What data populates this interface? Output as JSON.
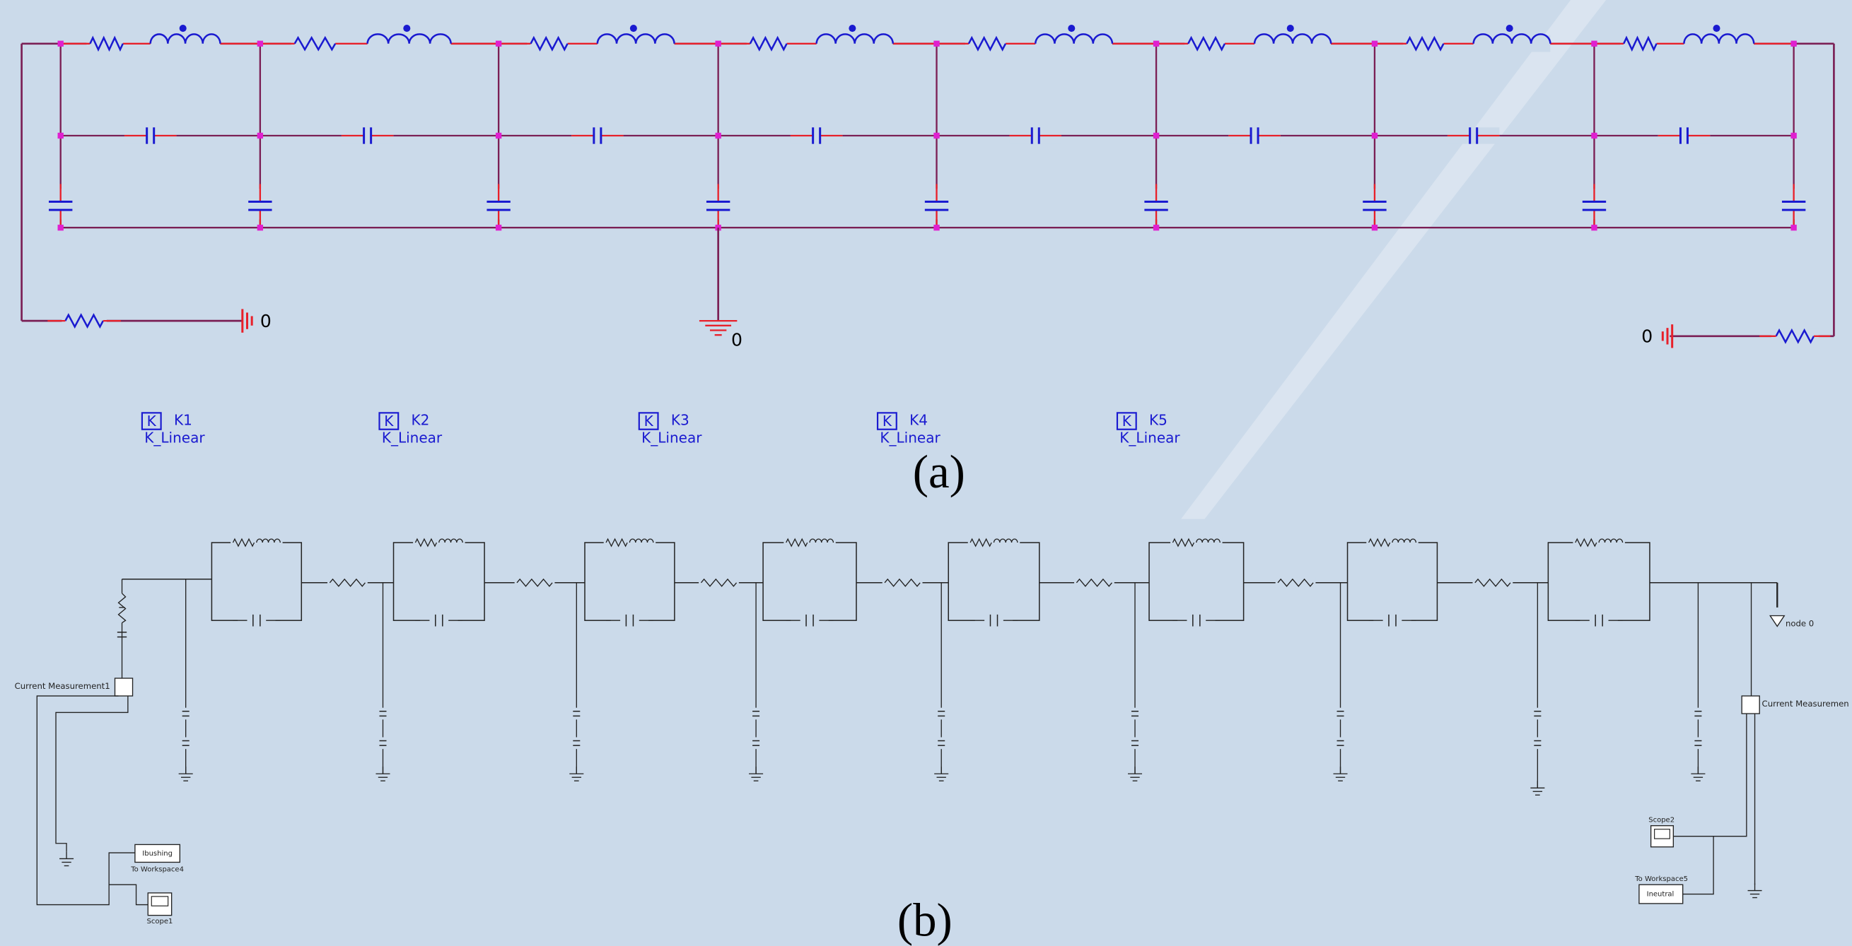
{
  "panel_a": {
    "ground_labels": [
      "0",
      "0",
      "0"
    ],
    "couplings": [
      {
        "icon": "K",
        "name": "K1",
        "model": "K_Linear"
      },
      {
        "icon": "K",
        "name": "K2",
        "model": "K_Linear"
      },
      {
        "icon": "K",
        "name": "K3",
        "model": "K_Linear"
      },
      {
        "icon": "K",
        "name": "K4",
        "model": "K_Linear"
      },
      {
        "icon": "K",
        "name": "K5",
        "model": "K_Linear"
      }
    ],
    "caption": "(a)"
  },
  "panel_b": {
    "current_measurements": [
      "Current Measurement1",
      "Current Measuremen"
    ],
    "node_label": "node 0",
    "workspaces": [
      {
        "label": "Ibushing",
        "caption": "To Workspace4"
      },
      {
        "label": "Ineutral",
        "caption": "To Workspace5"
      }
    ],
    "scopes": [
      "Scope1",
      "Scope2"
    ],
    "caption": "(b)"
  }
}
